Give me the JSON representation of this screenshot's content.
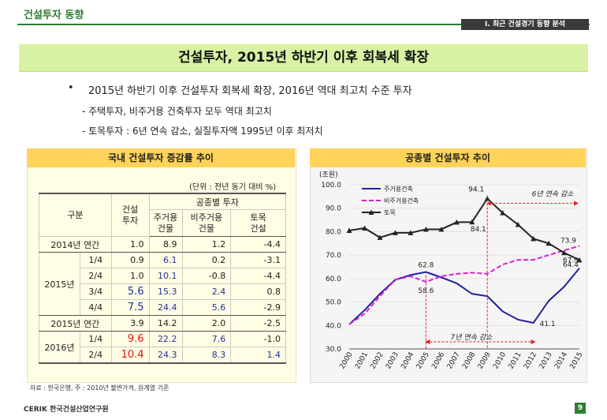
{
  "header": {
    "section": "건설투자 동향",
    "tag": "Ⅰ. 최근 건설경기 동향 분석"
  },
  "title": "건설투자, 2015년 하반기 이후 회복세 확장",
  "bullets": {
    "main": "2015년 하반기 이후 건설투자 회복세 확장, 2016년 역대 최고치 수준 투자",
    "sub1": "- 주택투자, 비주거용 건축투자 모두 역대 최고치",
    "sub2": "- 토목투자 : 6년 연속 감소, 실질투자액 1995년 이후 최저치"
  },
  "left_panel": {
    "title": "국내 건설투자 증감률 추이",
    "unit": "(단위 : 전년 동기 대비 %)",
    "col_headers": {
      "category": "구분",
      "total": "건설\n투자",
      "group": "공종별 투자",
      "housing": "주거용\n건물",
      "nonres": "비주거용\n건물",
      "civil": "토목\n건설"
    },
    "rows": [
      {
        "year": "2014년 연간",
        "q": "",
        "total": "1.0",
        "housing": "8.9",
        "nonres": "1.2",
        "civil": "-4.4"
      },
      {
        "year": "2015년",
        "q": "1/4",
        "total": "0.9",
        "housing": "6.1",
        "nonres": "0.2",
        "civil": "-3.1"
      },
      {
        "year": "",
        "q": "2/4",
        "total": "1.0",
        "housing": "10.1",
        "nonres": "-0.8",
        "civil": "-4.4"
      },
      {
        "year": "",
        "q": "3/4",
        "total": "5.6",
        "housing": "15.3",
        "nonres": "2.4",
        "civil": "0.8"
      },
      {
        "year": "",
        "q": "4/4",
        "total": "7.5",
        "housing": "24.4",
        "nonres": "5.6",
        "civil": "-2.9"
      },
      {
        "year": "2015년 연간",
        "q": "",
        "total": "3.9",
        "housing": "14.2",
        "nonres": "2.0",
        "civil": "-2.5"
      },
      {
        "year": "2016년",
        "q": "1/4",
        "total": "9.6",
        "housing": "22.2",
        "nonres": "7.6",
        "civil": "-1.0"
      },
      {
        "year": "",
        "q": "2/4",
        "total": "10.4",
        "housing": "24.3",
        "nonres": "8.3",
        "civil": "1.4"
      }
    ]
  },
  "right_panel": {
    "title": "공종별 건설투자 추이"
  },
  "chart_data": {
    "type": "line",
    "title": "공종별 건설투자 추이",
    "ylabel": "(조원)",
    "ylim": [
      30,
      100
    ],
    "yticks": [
      "100.0",
      "90.0",
      "80.0",
      "70.0",
      "60.0",
      "50.0",
      "40.0",
      "30.0"
    ],
    "categories": [
      "2000",
      "2001",
      "2002",
      "2003",
      "2004",
      "2005",
      "2006",
      "2007",
      "2008",
      "2009",
      "2010",
      "2011",
      "2012",
      "2013",
      "2014",
      "2015"
    ],
    "series": [
      {
        "name": "주거용건축",
        "color": "#1f1f9e",
        "dash": "",
        "marker": "none",
        "values": [
          40.5,
          46.5,
          53.5,
          59.5,
          61.5,
          62.8,
          60.5,
          58.0,
          53.5,
          52.5,
          46.0,
          42.5,
          41.1,
          50.5,
          56.5,
          64.4
        ]
      },
      {
        "name": "비주거용건축",
        "color": "#e01bd2",
        "dash": "6,3",
        "marker": "none",
        "values": [
          40.5,
          45.0,
          52.5,
          59.5,
          61.0,
          58.6,
          61.0,
          62.0,
          62.5,
          62.0,
          66.0,
          68.0,
          68.0,
          70.0,
          72.0,
          73.9
        ]
      },
      {
        "name": "토목",
        "color": "#222222",
        "dash": "",
        "marker": "triangle",
        "values": [
          80.5,
          81.5,
          77.5,
          79.5,
          79.5,
          81.0,
          81.0,
          84.0,
          84.1,
          94.1,
          88.0,
          83.0,
          77.0,
          75.0,
          71.0,
          67.9
        ]
      }
    ],
    "data_labels": {
      "l1": "94.1",
      "l2": "84.1",
      "l3": "62.8",
      "l4": "58.6",
      "l5": "41.1",
      "l6": "73.9",
      "l7": "67.9",
      "l8": "64.4"
    },
    "annotations": {
      "top": "6년 연속 감소",
      "bottom": "7년 연속 감소"
    }
  },
  "footer": {
    "source": "자료 : 한국은행,  주 : 2010년 불변가격, 원계열 기준",
    "logo": "CERIK 한국건설산업연구원",
    "page": "9"
  }
}
